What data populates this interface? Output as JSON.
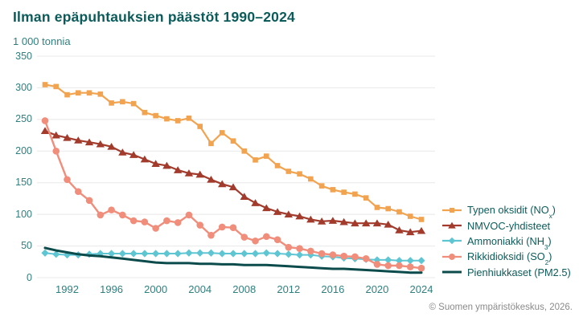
{
  "attribution": "© Suomen ympäristökeskus, 2026.",
  "colors": {
    "background": "#FFFFFF",
    "title_text": "#0C5B5B",
    "axis_text": "#2F7F7F",
    "legend_text": "#0C5B5B",
    "grid": "#E8E8E8",
    "attribution_text": "#8A8A8A"
  },
  "chart_data": {
    "type": "line",
    "title": "Ilman epäpuhtauksien päästöt 1990–2024",
    "ylabel": "1 000 tonnia",
    "xlabel": "",
    "xlim": [
      1990,
      2024
    ],
    "ylim": [
      0,
      350
    ],
    "x_ticks": [
      1992,
      1996,
      2000,
      2004,
      2008,
      2012,
      2016,
      2020,
      2024
    ],
    "y_ticks": [
      0,
      50,
      100,
      150,
      200,
      250,
      300,
      350
    ],
    "grid": "horizontal-only",
    "legend_position": "right",
    "x": [
      1990,
      1991,
      1992,
      1993,
      1994,
      1995,
      1996,
      1997,
      1998,
      1999,
      2000,
      2001,
      2002,
      2003,
      2004,
      2005,
      2006,
      2007,
      2008,
      2009,
      2010,
      2011,
      2012,
      2013,
      2014,
      2015,
      2016,
      2017,
      2018,
      2019,
      2020,
      2021,
      2022,
      2023,
      2024
    ],
    "series": [
      {
        "id": "nox",
        "name": "Typen oksidit (NOx)",
        "name_parts": [
          [
            "Typen oksidit (NO",
            0
          ],
          [
            "x",
            1
          ],
          [
            ")",
            0
          ]
        ],
        "color": "#F2A34F",
        "marker": "square",
        "line_width": 2.2,
        "values": [
          305,
          302,
          289,
          292,
          292,
          290,
          276,
          278,
          275,
          261,
          256,
          251,
          248,
          252,
          239,
          212,
          229,
          216,
          200,
          186,
          192,
          177,
          168,
          164,
          156,
          145,
          139,
          135,
          132,
          126,
          111,
          109,
          104,
          97,
          92
        ]
      },
      {
        "id": "nmvoc",
        "name": "NMVOC-yhdisteet",
        "name_parts": [
          [
            "NMVOC-yhdisteet",
            0
          ]
        ],
        "color": "#A23B2C",
        "marker": "triangle",
        "line_width": 2.2,
        "values": [
          232,
          225,
          221,
          217,
          214,
          211,
          207,
          198,
          194,
          187,
          180,
          177,
          170,
          165,
          163,
          155,
          148,
          143,
          128,
          118,
          110,
          104,
          100,
          97,
          92,
          89,
          90,
          88,
          86,
          86,
          86,
          84,
          75,
          72,
          74
        ]
      },
      {
        "id": "nh3",
        "name": "Ammoniakki (NH3)",
        "name_parts": [
          [
            "Ammoniakki (NH",
            0
          ],
          [
            "3",
            1
          ],
          [
            ")",
            0
          ]
        ],
        "color": "#5EC5D3",
        "marker": "diamond",
        "line_width": 2,
        "values": [
          39,
          37,
          36,
          36,
          37,
          38,
          38,
          38,
          38,
          38,
          38,
          38,
          38,
          39,
          39,
          39,
          38,
          38,
          38,
          38,
          39,
          38,
          37,
          36,
          36,
          34,
          33,
          31,
          30,
          29,
          28,
          28,
          27,
          27,
          27
        ]
      },
      {
        "id": "so2",
        "name": "Rikkidioksidi (SO2)",
        "name_parts": [
          [
            "Rikkidioksidi (SO",
            0
          ],
          [
            "2",
            1
          ],
          [
            ")",
            0
          ]
        ],
        "color": "#F18D7B",
        "marker": "circle",
        "line_width": 2.4,
        "values": [
          248,
          200,
          155,
          136,
          122,
          99,
          107,
          99,
          90,
          88,
          78,
          90,
          87,
          99,
          83,
          67,
          80,
          79,
          64,
          58,
          65,
          60,
          48,
          46,
          42,
          38,
          36,
          34,
          33,
          30,
          21,
          19,
          19,
          17,
          15
        ]
      },
      {
        "id": "pm25",
        "name": "Pienhiukkaset (PM2.5)",
        "name_parts": [
          [
            "Pienhiukkaset (PM2.5)",
            0
          ]
        ],
        "color": "#0C4B4B",
        "marker": "none",
        "line_width": 3,
        "values": [
          47,
          43,
          40,
          37,
          35,
          34,
          32,
          30,
          28,
          26,
          24,
          23,
          23,
          23,
          22,
          22,
          21,
          21,
          20,
          20,
          20,
          19,
          18,
          17,
          16,
          15,
          14,
          14,
          13,
          12,
          11,
          10,
          9,
          8,
          8
        ]
      }
    ]
  }
}
